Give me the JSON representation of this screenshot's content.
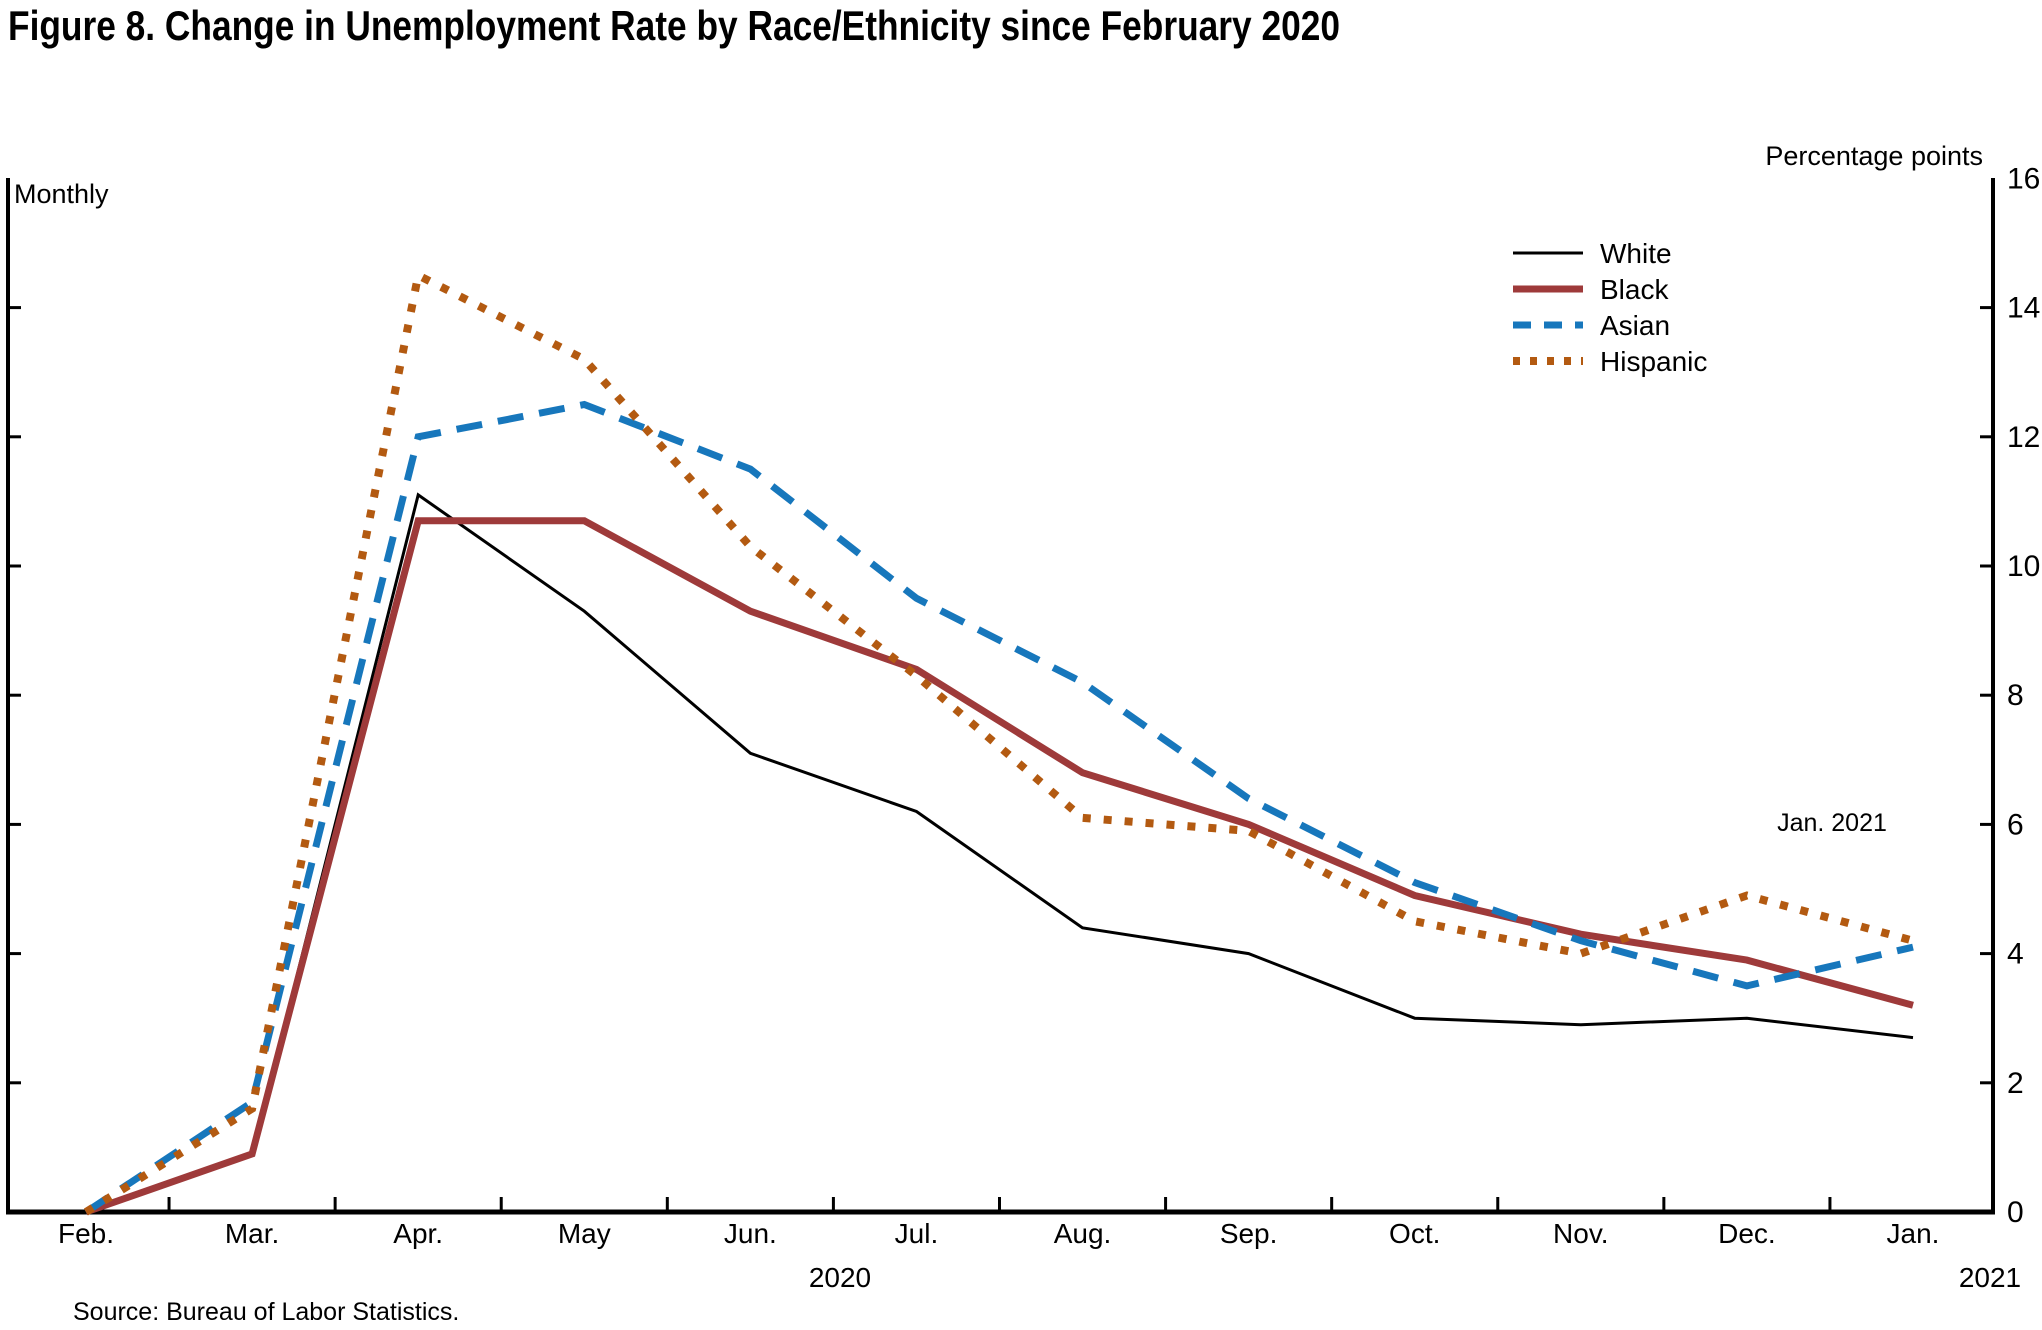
{
  "figure": {
    "title": "Figure 8. Change in Unemployment Rate by Race/Ethnicity since February 2020",
    "frequency_label": "Monthly",
    "unit_label": "Percentage points",
    "annotation": "Jan. 2021",
    "x_year_left": "2020",
    "x_year_right": "2021",
    "source": "Source: Bureau of Labor Statistics."
  },
  "chart_data": {
    "type": "line",
    "title": "Figure 8. Change in Unemployment Rate by Race/Ethnicity since February 2020",
    "xlabel": "",
    "ylabel": "Percentage points",
    "ylim": [
      0,
      16
    ],
    "yticks": [
      16,
      14,
      12,
      10,
      8,
      6,
      4,
      2,
      0
    ],
    "grid": false,
    "legend_position": "upper right",
    "categories": [
      "Feb.",
      "Mar.",
      "Apr.",
      "May",
      "Jun.",
      "Jul.",
      "Aug.",
      "Sep.",
      "Oct.",
      "Nov.",
      "Dec.",
      "Jan."
    ],
    "x_period_note": "Feb. 2020 through Jan. 2021, monthly",
    "series": [
      {
        "name": "White",
        "color": "#000000",
        "style": "solid",
        "width": 3,
        "values": [
          0.0,
          0.9,
          11.1,
          9.3,
          7.1,
          6.2,
          4.4,
          4.0,
          3.0,
          2.9,
          3.0,
          2.7
        ]
      },
      {
        "name": "Black",
        "color": "#9e3a3a",
        "style": "solid",
        "width": 7,
        "values": [
          0.0,
          0.9,
          10.7,
          10.7,
          9.3,
          8.4,
          6.8,
          6.0,
          4.9,
          4.3,
          3.9,
          3.2
        ]
      },
      {
        "name": "Asian",
        "color": "#1777bc",
        "style": "dashed",
        "width": 7,
        "values": [
          0.0,
          1.7,
          12.0,
          12.5,
          11.5,
          9.5,
          8.2,
          6.4,
          5.1,
          4.2,
          3.5,
          4.1
        ]
      },
      {
        "name": "Hispanic",
        "color": "#b35a11",
        "style": "dotted",
        "width": 8,
        "values": [
          0.0,
          1.6,
          14.5,
          13.2,
          10.3,
          8.3,
          6.1,
          5.9,
          4.5,
          4.0,
          4.9,
          4.2
        ]
      }
    ]
  }
}
